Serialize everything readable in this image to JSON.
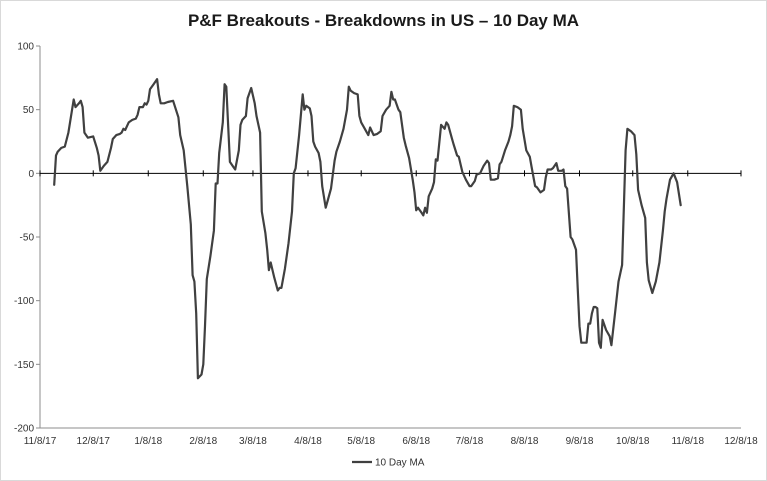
{
  "chart_data": {
    "type": "line",
    "title": "P&F Breakouts - Breakdowns in US – 10 Day MA",
    "xlabel": "",
    "ylabel": "",
    "ylim": [
      -200,
      100
    ],
    "y_ticks": [
      100,
      50,
      0,
      -50,
      -100,
      -150,
      -200
    ],
    "x_ticks": [
      "11/8/17",
      "12/8/17",
      "1/8/18",
      "2/8/18",
      "3/8/18",
      "4/8/18",
      "5/8/18",
      "6/8/18",
      "7/8/18",
      "8/8/18",
      "9/8/18",
      "10/8/18",
      "11/8/18",
      "12/8/18"
    ],
    "xlim": [
      "11/8/17",
      "12/8/18"
    ],
    "grid": false,
    "legend_position": "bottom",
    "series": [
      {
        "name": "10 Day MA",
        "color": "#404040",
        "points": [
          [
            "2017-11-16",
            -9
          ],
          [
            "2017-11-17",
            14
          ],
          [
            "2017-11-18",
            17
          ],
          [
            "2017-11-20",
            20
          ],
          [
            "2017-11-22",
            21
          ],
          [
            "2017-11-24",
            32
          ],
          [
            "2017-11-27",
            58
          ],
          [
            "2017-11-28",
            52
          ],
          [
            "2017-11-30",
            55
          ],
          [
            "2017-12-01",
            57
          ],
          [
            "2017-12-02",
            52
          ],
          [
            "2017-12-03",
            32
          ],
          [
            "2017-12-05",
            28
          ],
          [
            "2017-12-08",
            29
          ],
          [
            "2017-12-10",
            20
          ],
          [
            "2017-12-11",
            14
          ],
          [
            "2017-12-12",
            2
          ],
          [
            "2017-12-14",
            6
          ],
          [
            "2017-12-16",
            9
          ],
          [
            "2017-12-18",
            20
          ],
          [
            "2017-12-19",
            27
          ],
          [
            "2017-12-21",
            30
          ],
          [
            "2017-12-23",
            31
          ],
          [
            "2017-12-24",
            32
          ],
          [
            "2017-12-25",
            35
          ],
          [
            "2017-12-26",
            34
          ],
          [
            "2017-12-28",
            40
          ],
          [
            "2017-12-30",
            42
          ],
          [
            "2018-01-01",
            43
          ],
          [
            "2018-01-02",
            46
          ],
          [
            "2018-01-03",
            52
          ],
          [
            "2018-01-05",
            52
          ],
          [
            "2018-01-06",
            55
          ],
          [
            "2018-01-07",
            54
          ],
          [
            "2018-01-08",
            57
          ],
          [
            "2018-01-09",
            66
          ],
          [
            "2018-01-11",
            70
          ],
          [
            "2018-01-13",
            74
          ],
          [
            "2018-01-14",
            62
          ],
          [
            "2018-01-15",
            55
          ],
          [
            "2018-01-17",
            55
          ],
          [
            "2018-01-19",
            56
          ],
          [
            "2018-01-22",
            57
          ],
          [
            "2018-01-25",
            44
          ],
          [
            "2018-01-26",
            30
          ],
          [
            "2018-01-28",
            18
          ],
          [
            "2018-01-30",
            -10
          ],
          [
            "2018-02-01",
            -40
          ],
          [
            "2018-02-02",
            -80
          ],
          [
            "2018-02-03",
            -85
          ],
          [
            "2018-02-04",
            -110
          ],
          [
            "2018-02-05",
            -161
          ],
          [
            "2018-02-07",
            -158
          ],
          [
            "2018-02-08",
            -150
          ],
          [
            "2018-02-09",
            -120
          ],
          [
            "2018-02-10",
            -83
          ],
          [
            "2018-02-12",
            -65
          ],
          [
            "2018-02-14",
            -45
          ],
          [
            "2018-02-15",
            -8
          ],
          [
            "2018-02-16",
            -8
          ],
          [
            "2018-02-17",
            16
          ],
          [
            "2018-02-19",
            40
          ],
          [
            "2018-02-20",
            70
          ],
          [
            "2018-02-21",
            68
          ],
          [
            "2018-02-23",
            9
          ],
          [
            "2018-02-25",
            5
          ],
          [
            "2018-02-26",
            3
          ],
          [
            "2018-02-28",
            18
          ],
          [
            "2018-03-01",
            38
          ],
          [
            "2018-03-02",
            42
          ],
          [
            "2018-03-04",
            45
          ],
          [
            "2018-03-05",
            59
          ],
          [
            "2018-03-07",
            67
          ],
          [
            "2018-03-09",
            55
          ],
          [
            "2018-03-10",
            45
          ],
          [
            "2018-03-12",
            32
          ],
          [
            "2018-03-13",
            -30
          ],
          [
            "2018-03-15",
            -47
          ],
          [
            "2018-03-16",
            -60
          ],
          [
            "2018-03-17",
            -76
          ],
          [
            "2018-03-18",
            -70
          ],
          [
            "2018-03-20",
            -82
          ],
          [
            "2018-03-22",
            -92
          ],
          [
            "2018-03-23",
            -90
          ],
          [
            "2018-03-24",
            -90
          ],
          [
            "2018-03-26",
            -75
          ],
          [
            "2018-03-28",
            -55
          ],
          [
            "2018-03-30",
            -30
          ],
          [
            "2018-03-31",
            0
          ],
          [
            "2018-04-01",
            4
          ],
          [
            "2018-04-03",
            30
          ],
          [
            "2018-04-05",
            62
          ],
          [
            "2018-04-06",
            50
          ],
          [
            "2018-04-07",
            53
          ],
          [
            "2018-04-09",
            51
          ],
          [
            "2018-04-10",
            45
          ],
          [
            "2018-04-11",
            25
          ],
          [
            "2018-04-12",
            21
          ],
          [
            "2018-04-14",
            16
          ],
          [
            "2018-04-15",
            9
          ],
          [
            "2018-04-16",
            -10
          ],
          [
            "2018-04-18",
            -27
          ],
          [
            "2018-04-19",
            -22
          ],
          [
            "2018-04-21",
            -12
          ],
          [
            "2018-04-23",
            10
          ],
          [
            "2018-04-24",
            17
          ],
          [
            "2018-04-26",
            25
          ],
          [
            "2018-04-28",
            35
          ],
          [
            "2018-04-30",
            50
          ],
          [
            "2018-05-01",
            68
          ],
          [
            "2018-05-02",
            65
          ],
          [
            "2018-05-04",
            63
          ],
          [
            "2018-05-06",
            62
          ],
          [
            "2018-05-07",
            45
          ],
          [
            "2018-05-08",
            40
          ],
          [
            "2018-05-10",
            35
          ],
          [
            "2018-05-12",
            30
          ],
          [
            "2018-05-13",
            36
          ],
          [
            "2018-05-15",
            30
          ],
          [
            "2018-05-17",
            31
          ],
          [
            "2018-05-19",
            33
          ],
          [
            "2018-05-20",
            45
          ],
          [
            "2018-05-22",
            50
          ],
          [
            "2018-05-24",
            53
          ],
          [
            "2018-05-25",
            64
          ],
          [
            "2018-05-26",
            58
          ],
          [
            "2018-05-27",
            58
          ],
          [
            "2018-05-29",
            50
          ],
          [
            "2018-05-30",
            48
          ],
          [
            "2018-06-01",
            28
          ],
          [
            "2018-06-02",
            22
          ],
          [
            "2018-06-04",
            12
          ],
          [
            "2018-06-06",
            -5
          ],
          [
            "2018-06-07",
            -15
          ],
          [
            "2018-06-08",
            -29
          ],
          [
            "2018-06-09",
            -27
          ],
          [
            "2018-06-11",
            -31
          ],
          [
            "2018-06-12",
            -33
          ],
          [
            "2018-06-13",
            -27
          ],
          [
            "2018-06-14",
            -31
          ],
          [
            "2018-06-15",
            -18
          ],
          [
            "2018-06-17",
            -12
          ],
          [
            "2018-06-18",
            -7
          ],
          [
            "2018-06-19",
            11
          ],
          [
            "2018-06-20",
            10
          ],
          [
            "2018-06-22",
            38
          ],
          [
            "2018-06-24",
            35
          ],
          [
            "2018-06-25",
            40
          ],
          [
            "2018-06-26",
            38
          ],
          [
            "2018-06-28",
            28
          ],
          [
            "2018-06-29",
            23
          ],
          [
            "2018-07-01",
            14
          ],
          [
            "2018-07-02",
            13
          ],
          [
            "2018-07-04",
            1
          ],
          [
            "2018-07-06",
            -5
          ],
          [
            "2018-07-08",
            -10
          ],
          [
            "2018-07-09",
            -10
          ],
          [
            "2018-07-11",
            -6
          ],
          [
            "2018-07-12",
            -1
          ],
          [
            "2018-07-14",
            0
          ],
          [
            "2018-07-16",
            6
          ],
          [
            "2018-07-18",
            10
          ],
          [
            "2018-07-19",
            8
          ],
          [
            "2018-07-20",
            -5
          ],
          [
            "2018-07-22",
            -5
          ],
          [
            "2018-07-24",
            -4
          ],
          [
            "2018-07-25",
            7
          ],
          [
            "2018-07-26",
            9
          ],
          [
            "2018-07-28",
            18
          ],
          [
            "2018-07-30",
            25
          ],
          [
            "2018-07-31",
            30
          ],
          [
            "2018-08-01",
            37
          ],
          [
            "2018-08-02",
            53
          ],
          [
            "2018-08-04",
            52
          ],
          [
            "2018-08-06",
            50
          ],
          [
            "2018-08-07",
            35
          ],
          [
            "2018-08-09",
            18
          ],
          [
            "2018-08-11",
            13
          ],
          [
            "2018-08-12",
            5
          ],
          [
            "2018-08-14",
            -10
          ],
          [
            "2018-08-15",
            -11
          ],
          [
            "2018-08-17",
            -15
          ],
          [
            "2018-08-19",
            -13
          ],
          [
            "2018-08-20",
            -3
          ],
          [
            "2018-08-21",
            3
          ],
          [
            "2018-08-23",
            3
          ],
          [
            "2018-08-24",
            4
          ],
          [
            "2018-08-26",
            8
          ],
          [
            "2018-08-27",
            2
          ],
          [
            "2018-08-29",
            2
          ],
          [
            "2018-08-30",
            3
          ],
          [
            "2018-08-31",
            -10
          ],
          [
            "2018-09-01",
            -12
          ],
          [
            "2018-09-03",
            -50
          ],
          [
            "2018-09-04",
            -52
          ],
          [
            "2018-09-06",
            -60
          ],
          [
            "2018-09-07",
            -90
          ],
          [
            "2018-09-08",
            -120
          ],
          [
            "2018-09-09",
            -133
          ],
          [
            "2018-09-11",
            -133
          ],
          [
            "2018-09-12",
            -133
          ],
          [
            "2018-09-13",
            -118
          ],
          [
            "2018-09-14",
            -118
          ],
          [
            "2018-09-15",
            -110
          ],
          [
            "2018-09-16",
            -105
          ],
          [
            "2018-09-17",
            -105
          ],
          [
            "2018-09-18",
            -106
          ],
          [
            "2018-09-19",
            -133
          ],
          [
            "2018-09-20",
            -137
          ],
          [
            "2018-09-21",
            -115
          ],
          [
            "2018-09-23",
            -123
          ],
          [
            "2018-09-25",
            -128
          ],
          [
            "2018-09-26",
            -135
          ],
          [
            "2018-09-28",
            -110
          ],
          [
            "2018-09-30",
            -85
          ],
          [
            "2018-10-02",
            -72
          ],
          [
            "2018-10-04",
            18
          ],
          [
            "2018-10-05",
            35
          ],
          [
            "2018-10-07",
            33
          ],
          [
            "2018-10-09",
            30
          ],
          [
            "2018-10-10",
            15
          ],
          [
            "2018-10-11",
            -13
          ],
          [
            "2018-10-13",
            -25
          ],
          [
            "2018-10-15",
            -35
          ],
          [
            "2018-10-16",
            -70
          ],
          [
            "2018-10-17",
            -84
          ],
          [
            "2018-10-19",
            -94
          ],
          [
            "2018-10-21",
            -85
          ],
          [
            "2018-10-23",
            -70
          ],
          [
            "2018-10-25",
            -45
          ],
          [
            "2018-10-26",
            -30
          ],
          [
            "2018-10-27",
            -20
          ],
          [
            "2018-10-29",
            -5
          ],
          [
            "2018-10-31",
            0
          ],
          [
            "2018-11-02",
            -7
          ],
          [
            "2018-11-04",
            -25
          ]
        ]
      }
    ]
  }
}
